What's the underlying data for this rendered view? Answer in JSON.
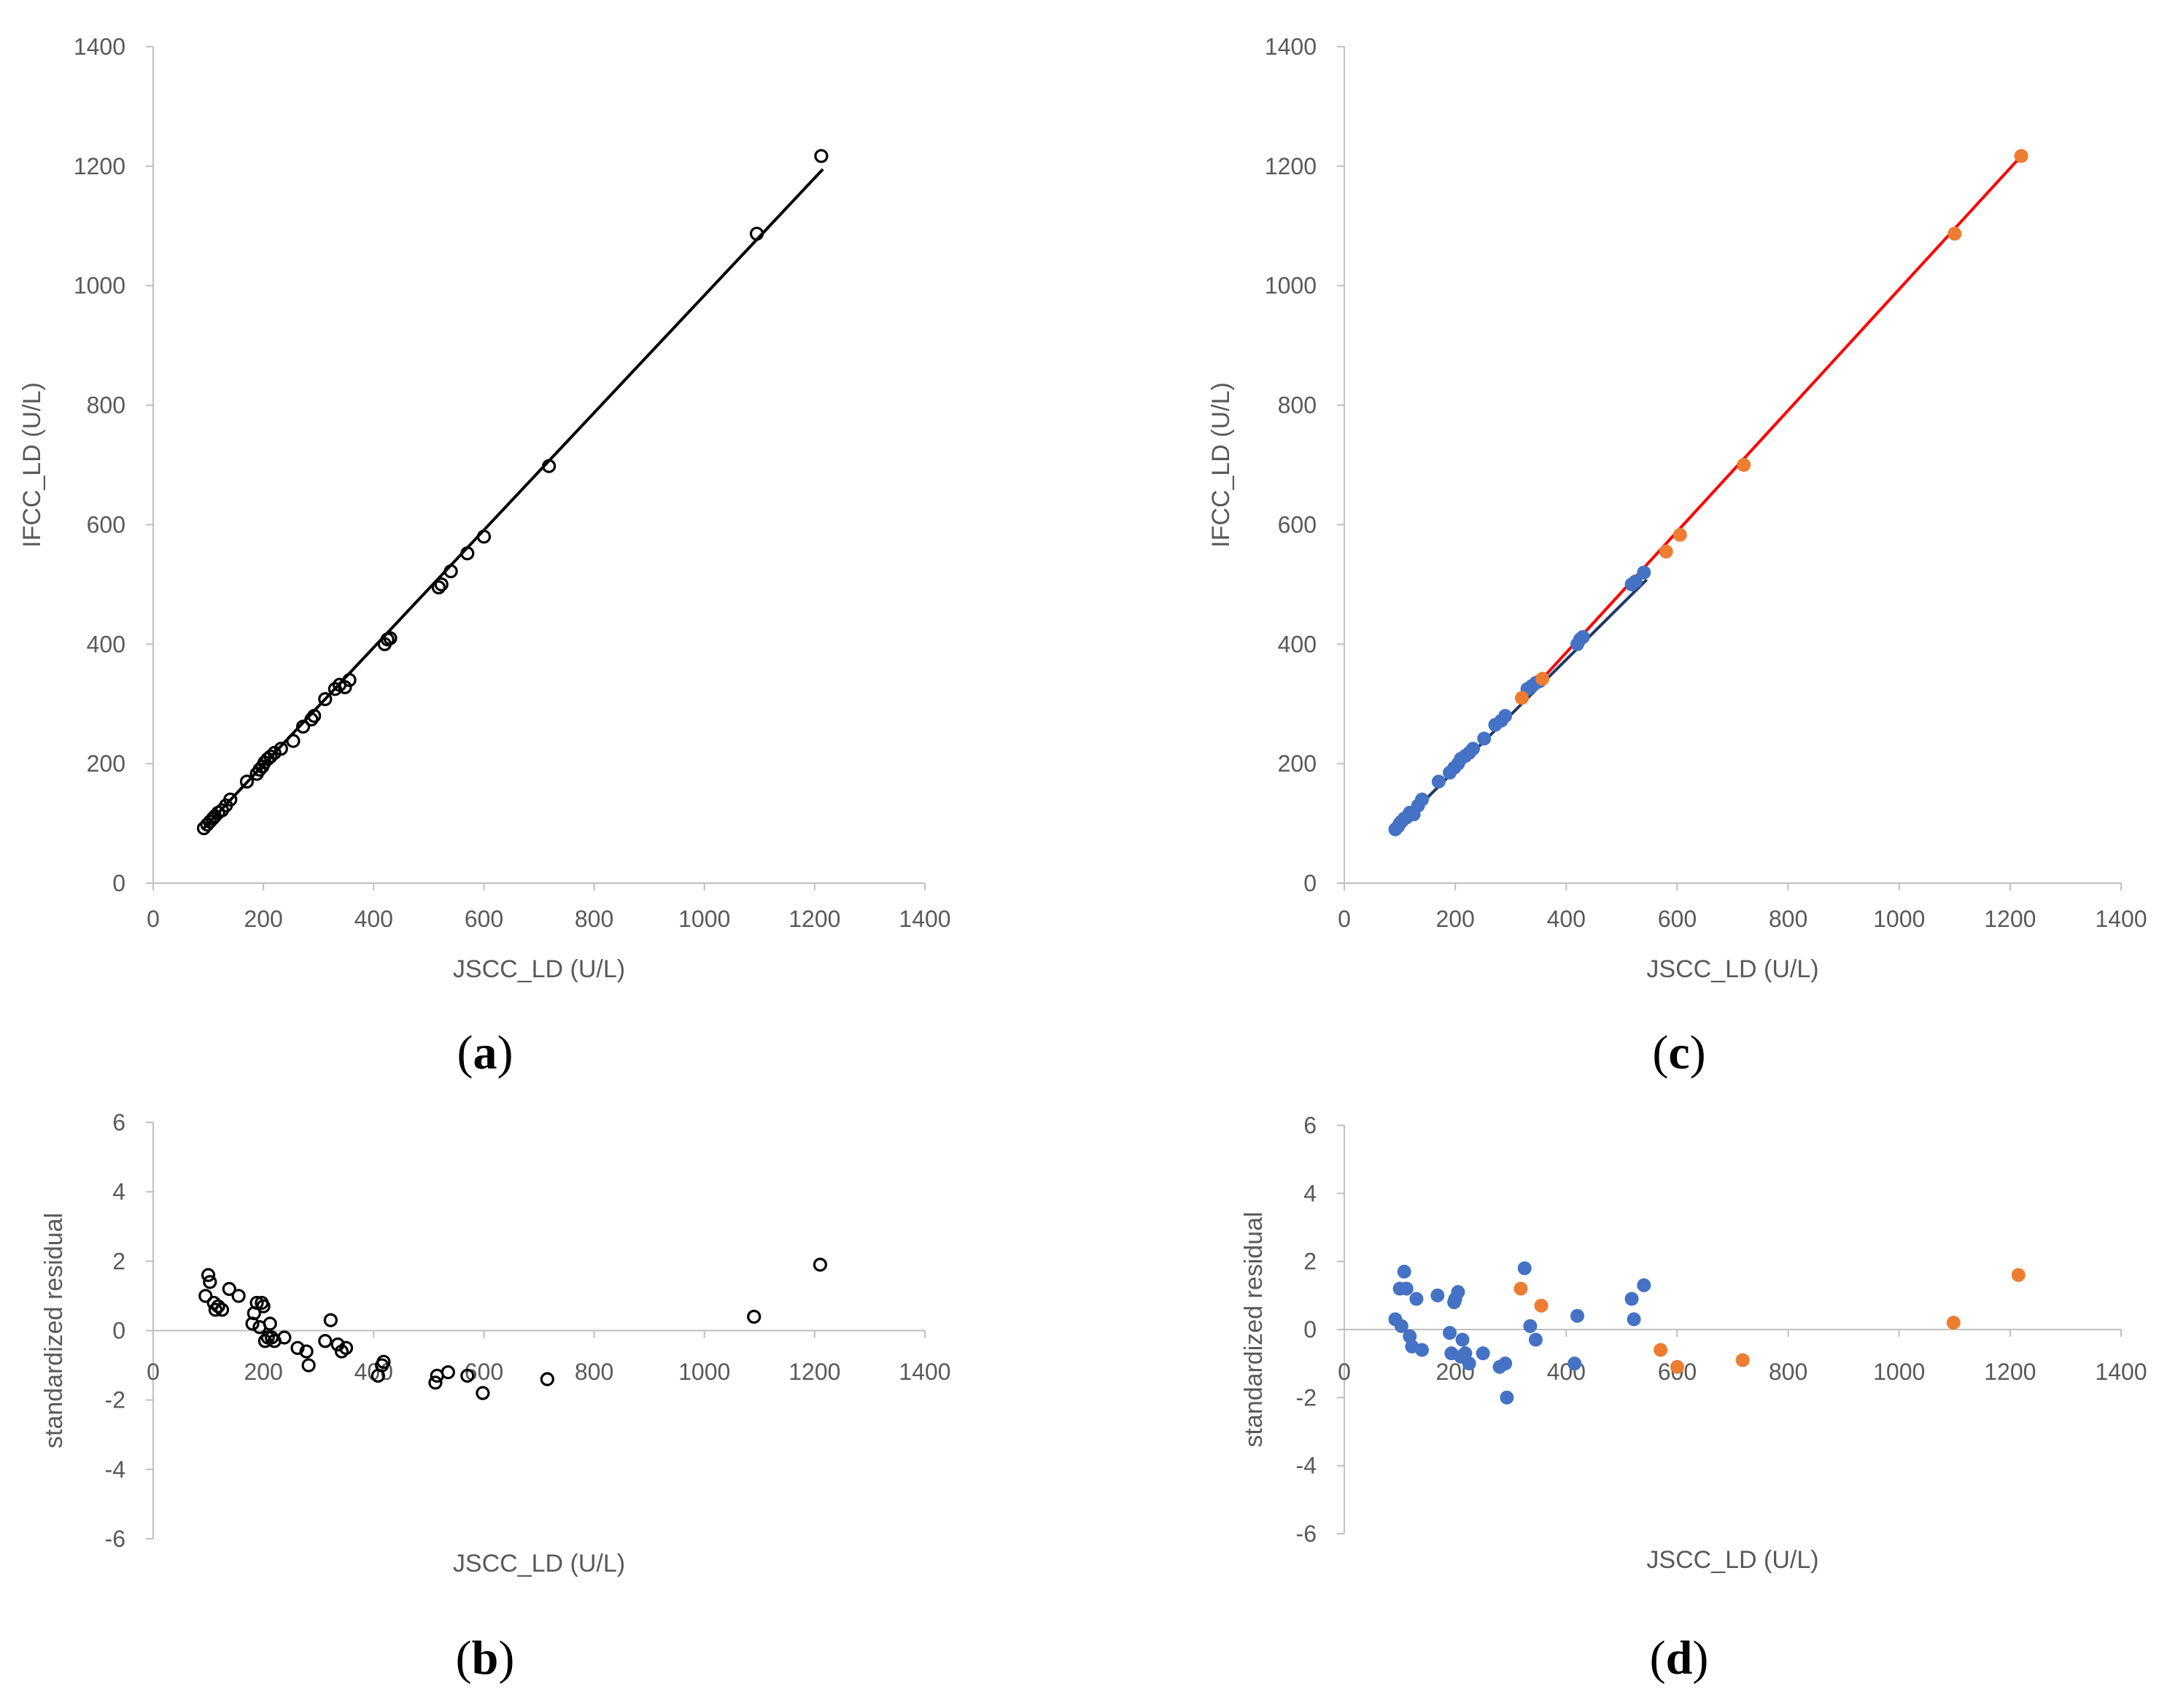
{
  "colors": {
    "open_marker": "#000000",
    "fit_line_a": "#000000",
    "blue_series": "#4472C4",
    "orange_series": "#ED7D31",
    "red_line": "#FF0000",
    "navy_line": "#1F3864"
  },
  "chart_data": [
    {
      "id": "a",
      "panel_label": "a",
      "type": "scatter",
      "xlabel": "JSCC_LD (U/L)",
      "ylabel": "IFCC_LD (U/L)",
      "xlim": [
        0,
        1400
      ],
      "ylim": [
        0,
        1400
      ],
      "xticks": [
        0,
        200,
        400,
        600,
        800,
        1000,
        1200,
        1400
      ],
      "yticks": [
        0,
        200,
        400,
        600,
        800,
        1000,
        1200,
        1400
      ],
      "lines": [
        {
          "name": "regression",
          "color": "#000000",
          "x": [
            90,
            1215
          ],
          "y": [
            90,
            1195
          ]
        }
      ],
      "series": [
        {
          "name": "samples",
          "marker": "open",
          "color": "#000000",
          "x": [
            92,
            98,
            103,
            108,
            112,
            118,
            125,
            132,
            140,
            170,
            188,
            193,
            198,
            202,
            208,
            213,
            220,
            232,
            254,
            272,
            287,
            292,
            312,
            330,
            338,
            348,
            356,
            420,
            425,
            430,
            518,
            523,
            540,
            570,
            600,
            718,
            1095,
            1212
          ],
          "y": [
            92,
            98,
            103,
            108,
            112,
            118,
            122,
            130,
            140,
            170,
            183,
            190,
            195,
            202,
            208,
            212,
            218,
            225,
            238,
            262,
            274,
            280,
            308,
            325,
            332,
            328,
            340,
            400,
            408,
            410,
            495,
            500,
            522,
            552,
            580,
            698,
            1087,
            1217
          ]
        }
      ]
    },
    {
      "id": "b",
      "panel_label": "b",
      "type": "scatter",
      "xlabel": "JSCC_LD (U/L)",
      "ylabel": "standardized residual",
      "xlim": [
        0,
        1400
      ],
      "ylim": [
        -6,
        6
      ],
      "xticks": [
        0,
        200,
        400,
        600,
        800,
        1000,
        1200,
        1400
      ],
      "yticks": [
        -6,
        -4,
        -2,
        0,
        2,
        4,
        6
      ],
      "series": [
        {
          "name": "residuals",
          "marker": "open",
          "color": "#000000",
          "x": [
            95,
            100,
            103,
            110,
            113,
            118,
            125,
            138,
            155,
            180,
            183,
            188,
            193,
            197,
            200,
            203,
            208,
            212,
            215,
            220,
            238,
            262,
            278,
            282,
            312,
            322,
            335,
            342,
            350,
            408,
            415,
            418,
            512,
            515,
            535,
            570,
            598,
            715,
            1090,
            1210
          ],
          "y": [
            1.0,
            1.6,
            1.4,
            0.8,
            0.6,
            0.7,
            0.6,
            1.2,
            1.0,
            0.2,
            0.5,
            0.8,
            0.1,
            0.8,
            0.7,
            -0.3,
            -0.2,
            0.2,
            -0.2,
            -0.3,
            -0.2,
            -0.5,
            -0.6,
            -1.0,
            -0.3,
            0.3,
            -0.4,
            -0.6,
            -0.5,
            -1.3,
            -1.0,
            -0.9,
            -1.5,
            -1.3,
            -1.2,
            -1.3,
            -1.8,
            -1.4,
            0.4,
            1.9
          ]
        }
      ]
    },
    {
      "id": "c",
      "panel_label": "c",
      "type": "scatter",
      "xlabel": "JSCC_LD (U/L)",
      "ylabel": "IFCC_LD (U/L)",
      "xlim": [
        0,
        1400
      ],
      "ylim": [
        0,
        1400
      ],
      "xticks": [
        0,
        200,
        400,
        600,
        800,
        1000,
        1200,
        1400
      ],
      "yticks": [
        0,
        200,
        400,
        600,
        800,
        1000,
        1200,
        1400
      ],
      "lines": [
        {
          "name": "red-fit",
          "color": "#FF0000",
          "x": [
            330,
            1220
          ],
          "y": [
            315,
            1217
          ]
        },
        {
          "name": "blue-fit",
          "color": "#1F3864",
          "x": [
            90,
            545
          ],
          "y": [
            88,
            508
          ]
        }
      ],
      "series": [
        {
          "name": "blue-points",
          "marker": "filled",
          "color": "#4472C4",
          "x": [
            92,
            97,
            100,
            103,
            108,
            112,
            118,
            125,
            133,
            140,
            170,
            190,
            198,
            205,
            210,
            218,
            225,
            232,
            252,
            272,
            283,
            290,
            330,
            338,
            345,
            352,
            420,
            425,
            430,
            518,
            525,
            540
          ],
          "y": [
            90,
            95,
            100,
            103,
            108,
            110,
            118,
            115,
            130,
            140,
            170,
            185,
            193,
            200,
            208,
            213,
            218,
            225,
            242,
            265,
            272,
            280,
            325,
            330,
            335,
            338,
            400,
            408,
            412,
            500,
            505,
            520
          ],
          "legend": ""
        },
        {
          "name": "orange-points",
          "marker": "filled",
          "color": "#ED7D31",
          "x": [
            320,
            357,
            580,
            605,
            720,
            1100,
            1220
          ],
          "y": [
            310,
            342,
            555,
            583,
            700,
            1087,
            1217
          ],
          "legend": ""
        }
      ]
    },
    {
      "id": "d",
      "panel_label": "d",
      "type": "scatter",
      "xlabel": "JSCC_LD (U/L)",
      "ylabel": "standardized residual",
      "xlim": [
        0,
        1400
      ],
      "ylim": [
        -6,
        6
      ],
      "xticks": [
        0,
        200,
        400,
        600,
        800,
        1000,
        1200,
        1400
      ],
      "yticks": [
        -6,
        -4,
        -2,
        0,
        2,
        4,
        6
      ],
      "series": [
        {
          "name": "blue-points",
          "marker": "filled",
          "color": "#4472C4",
          "x": [
            92,
            100,
            103,
            108,
            112,
            118,
            122,
            130,
            140,
            168,
            190,
            193,
            198,
            200,
            205,
            210,
            213,
            218,
            225,
            250,
            280,
            290,
            293,
            325,
            335,
            345,
            415,
            420,
            518,
            522,
            540
          ],
          "y": [
            0.3,
            1.2,
            0.1,
            1.7,
            1.2,
            -0.2,
            -0.5,
            0.9,
            -0.6,
            1.0,
            -0.1,
            -0.7,
            0.8,
            0.9,
            1.1,
            -0.8,
            -0.3,
            -0.7,
            -1.0,
            -0.7,
            -1.1,
            -1.0,
            -2.0,
            1.8,
            0.1,
            -0.3,
            -1.0,
            0.4,
            0.9,
            0.3,
            1.3
          ]
        },
        {
          "name": "orange-points",
          "marker": "filled",
          "color": "#ED7D31",
          "x": [
            318,
            355,
            570,
            600,
            718,
            1098,
            1215
          ],
          "y": [
            1.2,
            0.7,
            -0.6,
            -1.1,
            -0.9,
            0.2,
            1.6
          ]
        }
      ]
    }
  ]
}
